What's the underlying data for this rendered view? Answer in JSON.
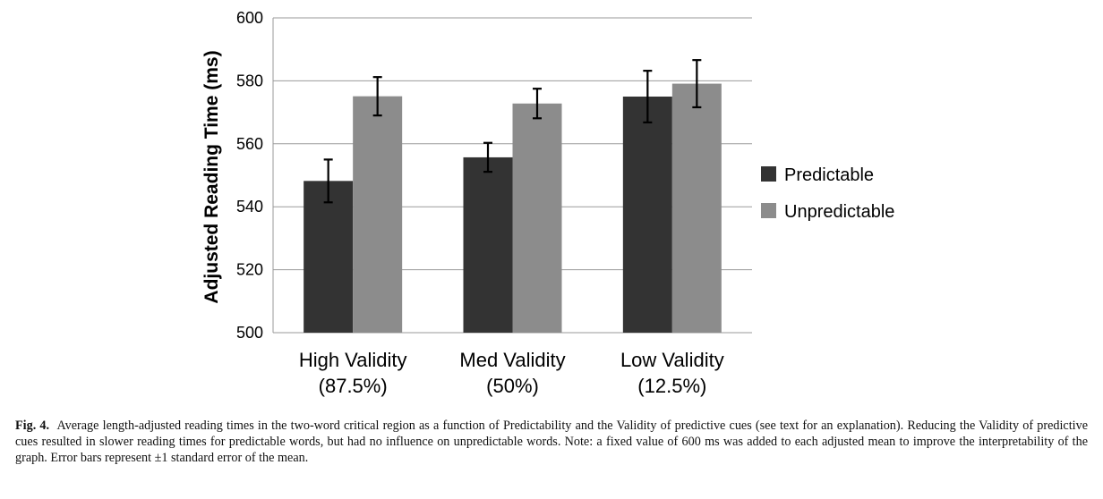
{
  "chart_data": {
    "type": "bar",
    "title": "",
    "xlabel": "",
    "ylabel": "Adjusted Reading Time (ms)",
    "ylim": [
      500,
      600
    ],
    "yticks": [
      "500",
      "520",
      "540",
      "560",
      "580",
      "600"
    ],
    "ytick_values": [
      500,
      520,
      540,
      560,
      580,
      600
    ],
    "categories": [
      "High Validity (87.5%)",
      "Med Validity (50%)",
      "Low Validity (12.5%)"
    ],
    "category_lines": [
      [
        "High Validity",
        "(87.5%)"
      ],
      [
        "Med Validity",
        "(50%)"
      ],
      [
        "Low Validity",
        "(12.5%)"
      ]
    ],
    "series": [
      {
        "name": "Predictable",
        "color": "#333333",
        "values": [
          548.2,
          555.7,
          575.0
        ],
        "errors": [
          6.8,
          4.6,
          8.2
        ]
      },
      {
        "name": "Unpredictable",
        "color": "#8c8c8c",
        "values": [
          575.1,
          572.8,
          579.1
        ],
        "errors": [
          6.1,
          4.7,
          7.5
        ]
      }
    ],
    "grid": true,
    "legend_position": "right"
  },
  "caption": {
    "label": "Fig. 4.",
    "text": "Average length-adjusted reading times in the two-word critical region as a function of Predictability and the Validity of predictive cues (see text for an explanation). Reducing the Validity of predictive cues resulted in slower reading times for predictable words, but had no influence on unpredictable words. Note: a fixed value of 600 ms was added to each adjusted mean to improve the interpretability of the graph. Error bars represent ±1 standard error of the mean."
  }
}
